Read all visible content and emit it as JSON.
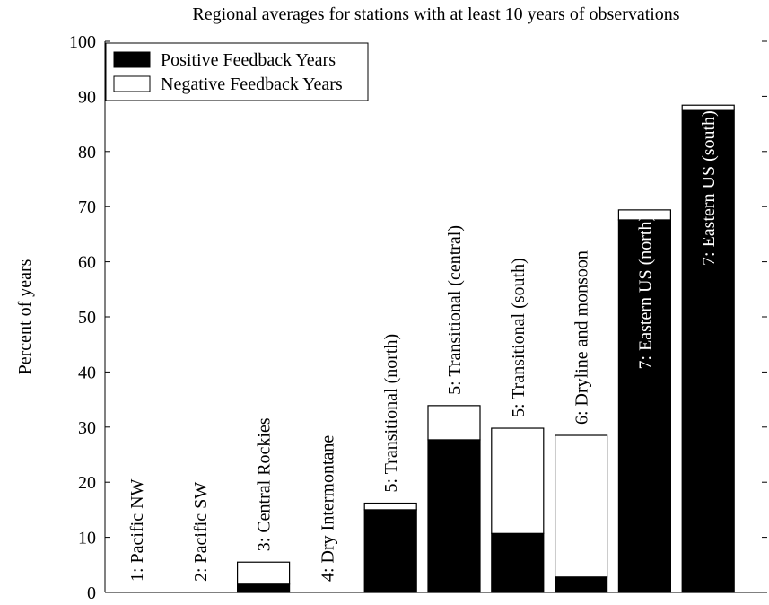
{
  "chart_data": {
    "type": "stacked-bar",
    "title": "Regional averages for stations with at least 10 years of observations",
    "y_label": "Percent of years",
    "categories": [
      "1: Pacific NW",
      "2: Pacific SW",
      "3: Central Rockies",
      "4: Dry Intermontane",
      "5: Transitional (north)",
      "5: Transitional (central)",
      "5: Transitional (south)",
      "6: Dryline and monsoon",
      "7: Eastern US (north)",
      "7: Eastern US (south)"
    ],
    "series": [
      {
        "name": "Positive Feedback Years",
        "color": "#000000",
        "values": [
          0,
          0,
          1.5,
          0,
          15,
          27.7,
          10.7,
          2.8,
          67.6,
          87.6
        ]
      },
      {
        "name": "Negative Feedback Years",
        "color": "#ffffff",
        "values": [
          0,
          0,
          4.0,
          0,
          1.2,
          6.2,
          19.1,
          25.7,
          1.8,
          0.8
        ]
      }
    ],
    "ylim": [
      0,
      100
    ],
    "yticks": [
      0,
      10,
      20,
      30,
      40,
      50,
      60,
      70,
      80,
      90,
      100
    ],
    "legend": "top-left"
  }
}
